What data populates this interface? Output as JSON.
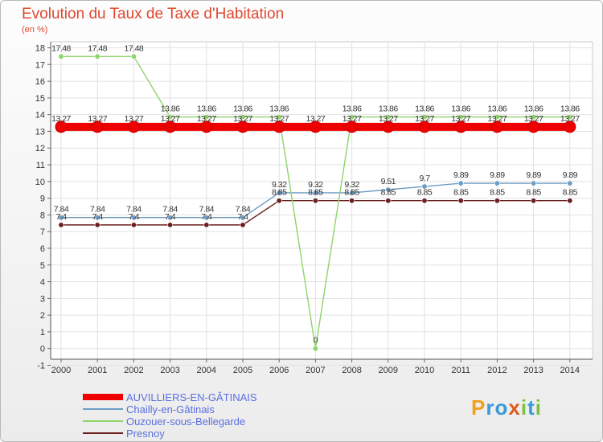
{
  "header": {
    "title": "Evolution du Taux de Taxe d'Habitation",
    "subtitle": "(en %)"
  },
  "brand": {
    "letters": [
      "P",
      "r",
      "o",
      "x",
      "i",
      "t",
      "i"
    ],
    "colors": [
      "#f0a020",
      "#3a9ad9",
      "#3a9ad9",
      "#e05a1a",
      "#7cc040",
      "#3a9ad9",
      "#7cc040"
    ]
  },
  "chart_data": {
    "type": "line",
    "title": "Evolution du Taux de Taxe d'Habitation",
    "ylabel": "(en %)",
    "xlabel": "",
    "ylim": [
      -1,
      18
    ],
    "yticks": [
      "-1",
      "0",
      "1",
      "2",
      "3",
      "4",
      "5",
      "6",
      "7",
      "8",
      "9",
      "10",
      "11",
      "12",
      "13",
      "14",
      "15",
      "16",
      "17",
      "18"
    ],
    "grid": true,
    "legend_position": "bottom-left",
    "x": [
      "2000",
      "2001",
      "2002",
      "2003",
      "2004",
      "2005",
      "2006",
      "2007",
      "2008",
      "2009",
      "2010",
      "2011",
      "2012",
      "2013",
      "2014"
    ],
    "series": [
      {
        "name": "Presnoy",
        "color": "#6b1f1f",
        "values": [
          7.4,
          7.4,
          7.4,
          7.4,
          7.4,
          7.4,
          8.85,
          8.85,
          8.85,
          8.85,
          8.85,
          8.85,
          8.85,
          8.85,
          8.85
        ],
        "labels": [
          "7.4",
          "7.4",
          "7.4",
          "7.4",
          "7.4",
          "7.4",
          "8.85",
          "8.85",
          "8.85",
          "8.85",
          "8.85",
          "8.85",
          "8.85",
          "8.85",
          "8.85"
        ]
      },
      {
        "name": "Chailly-en-Gâtinais",
        "color": "#6d9cc4",
        "values": [
          7.84,
          7.84,
          7.84,
          7.84,
          7.84,
          7.84,
          9.32,
          9.32,
          9.32,
          9.51,
          9.7,
          9.89,
          9.89,
          9.89,
          9.89
        ],
        "labels": [
          "7.84",
          "7.84",
          "7.84",
          "7.84",
          "7.84",
          "7.84",
          "9.32",
          "9.32",
          "9.32",
          "9.51",
          "9.7",
          "9.89",
          "9.89",
          "9.89",
          "9.89"
        ]
      },
      {
        "name": "Ouzouer-sous-Bellegarde",
        "color": "#8fd36b",
        "values": [
          17.48,
          17.48,
          17.48,
          13.86,
          13.86,
          13.86,
          13.86,
          0,
          13.86,
          13.86,
          13.86,
          13.86,
          13.86,
          13.86,
          13.86
        ],
        "labels": [
          "17.48",
          "17.48",
          "17.48",
          "13.86",
          "13.86",
          "13.86",
          "13.86",
          "0",
          "13.86",
          "13.86",
          "13.86",
          "13.86",
          "13.86",
          "13.86",
          "13.86"
        ]
      },
      {
        "name": "AUVILLIERS-EN-GÂTINAIS",
        "color": "#ee0000",
        "values": [
          13.27,
          13.27,
          13.27,
          13.27,
          13.27,
          13.27,
          13.27,
          13.27,
          13.27,
          13.27,
          13.27,
          13.27,
          13.27,
          13.27,
          13.27
        ],
        "labels": [
          "13.27",
          "13.27",
          "13.27",
          "13.27",
          "13.27",
          "13.27",
          "13.27",
          "13.27",
          "13.27",
          "13.27",
          "13.27",
          "13.27",
          "13.27",
          "13.27",
          "13.27"
        ]
      }
    ],
    "legend": [
      {
        "name": "AUVILLIERS-EN-GÂTINAIS",
        "color": "#ee0000",
        "weight": "thick"
      },
      {
        "name": "Chailly-en-Gâtinais",
        "color": "#6d9cc4",
        "weight": "thin"
      },
      {
        "name": "Ouzouer-sous-Bellegarde",
        "color": "#8fd36b",
        "weight": "thin"
      },
      {
        "name": "Presnoy",
        "color": "#6b1f1f",
        "weight": "thin"
      }
    ]
  }
}
